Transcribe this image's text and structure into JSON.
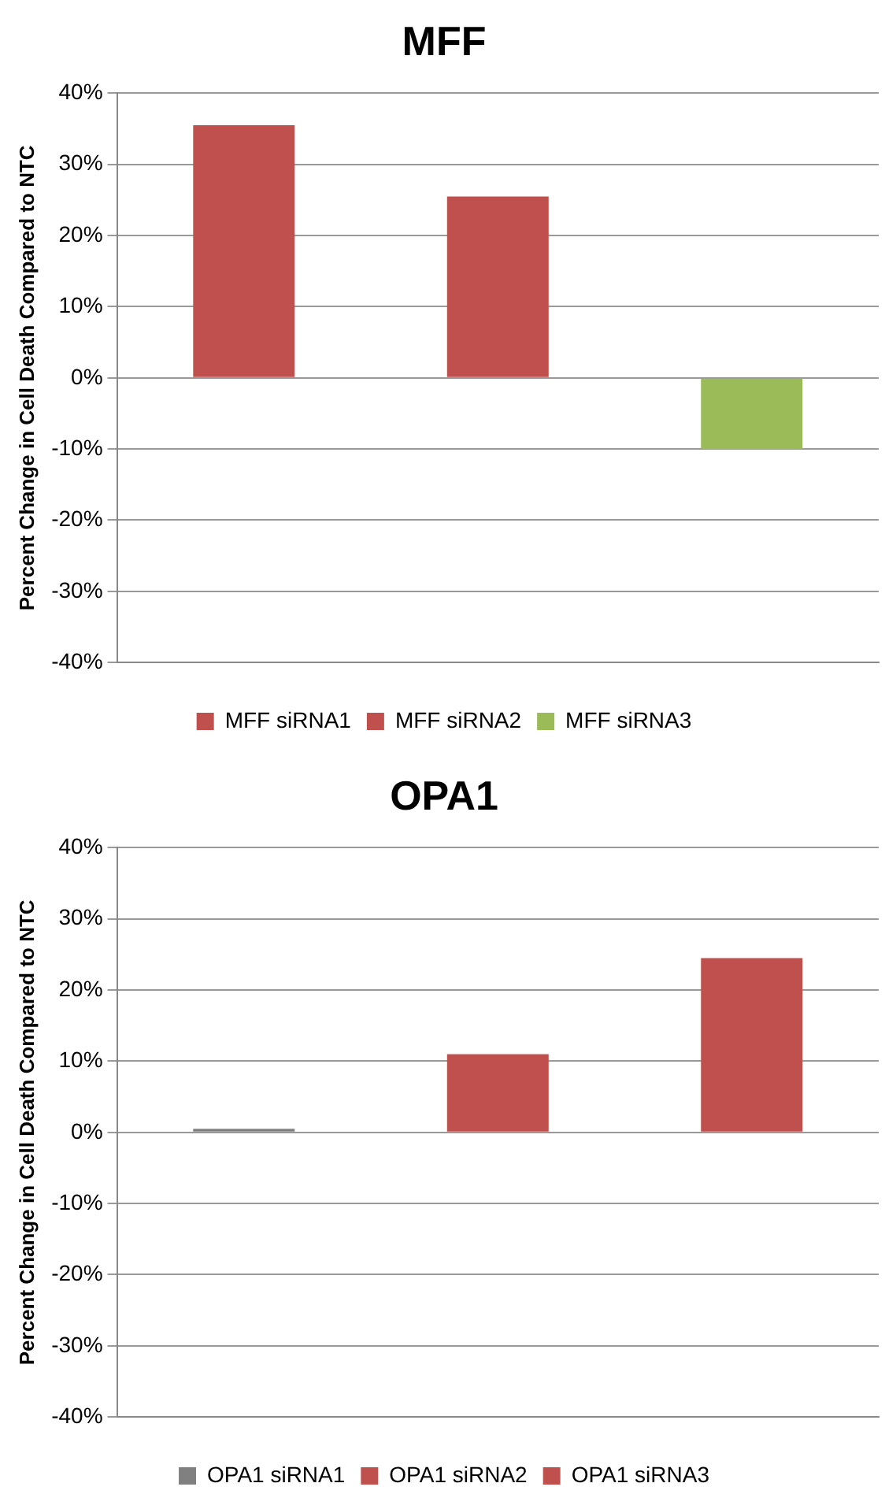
{
  "chart_data": [
    {
      "type": "bar",
      "title": "MFF",
      "ylabel": "Percent Change in Cell Death Compared to NTC",
      "categories": [
        null,
        null,
        null
      ],
      "series": [
        {
          "name": "MFF siRNA1",
          "color": "#c0504d",
          "values": [
            35.5,
            null,
            null
          ]
        },
        {
          "name": "MFF siRNA2",
          "color": "#c0504d",
          "values": [
            null,
            25.5,
            null
          ]
        },
        {
          "name": "MFF siRNA3",
          "color": "#9bbb59",
          "values": [
            null,
            null,
            -10
          ]
        }
      ],
      "ylim": [
        -40,
        40
      ],
      "yticks": [
        {
          "value": -40,
          "label": "-40%"
        },
        {
          "value": -30,
          "label": "-30%"
        },
        {
          "value": -20,
          "label": "-20%"
        },
        {
          "value": -10,
          "label": "-10%"
        },
        {
          "value": 0,
          "label": "0%"
        },
        {
          "value": 10,
          "label": "10%"
        },
        {
          "value": 20,
          "label": "20%"
        },
        {
          "value": 30,
          "label": "30%"
        },
        {
          "value": 40,
          "label": "40%"
        }
      ],
      "grid": "y",
      "legend": "bottom"
    },
    {
      "type": "bar",
      "title": "OPA1",
      "ylabel": "Percent Change in Cell Death Compared to NTC",
      "categories": [
        null,
        null,
        null
      ],
      "series": [
        {
          "name": "OPA1 siRNA1",
          "color": "#808080",
          "values": [
            0.5,
            null,
            null
          ]
        },
        {
          "name": "OPA1 siRNA2",
          "color": "#c0504d",
          "values": [
            null,
            11,
            null
          ]
        },
        {
          "name": "OPA1 siRNA3",
          "color": "#c0504d",
          "values": [
            null,
            null,
            24.5
          ]
        }
      ],
      "ylim": [
        -40,
        40
      ],
      "yticks": [
        {
          "value": -40,
          "label": "-40%"
        },
        {
          "value": -30,
          "label": "-30%"
        },
        {
          "value": -20,
          "label": "-20%"
        },
        {
          "value": -10,
          "label": "-10%"
        },
        {
          "value": 0,
          "label": "0%"
        },
        {
          "value": 10,
          "label": "10%"
        },
        {
          "value": 20,
          "label": "20%"
        },
        {
          "value": 30,
          "label": "30%"
        },
        {
          "value": 40,
          "label": "40%"
        }
      ],
      "grid": "y",
      "legend": "bottom"
    }
  ]
}
